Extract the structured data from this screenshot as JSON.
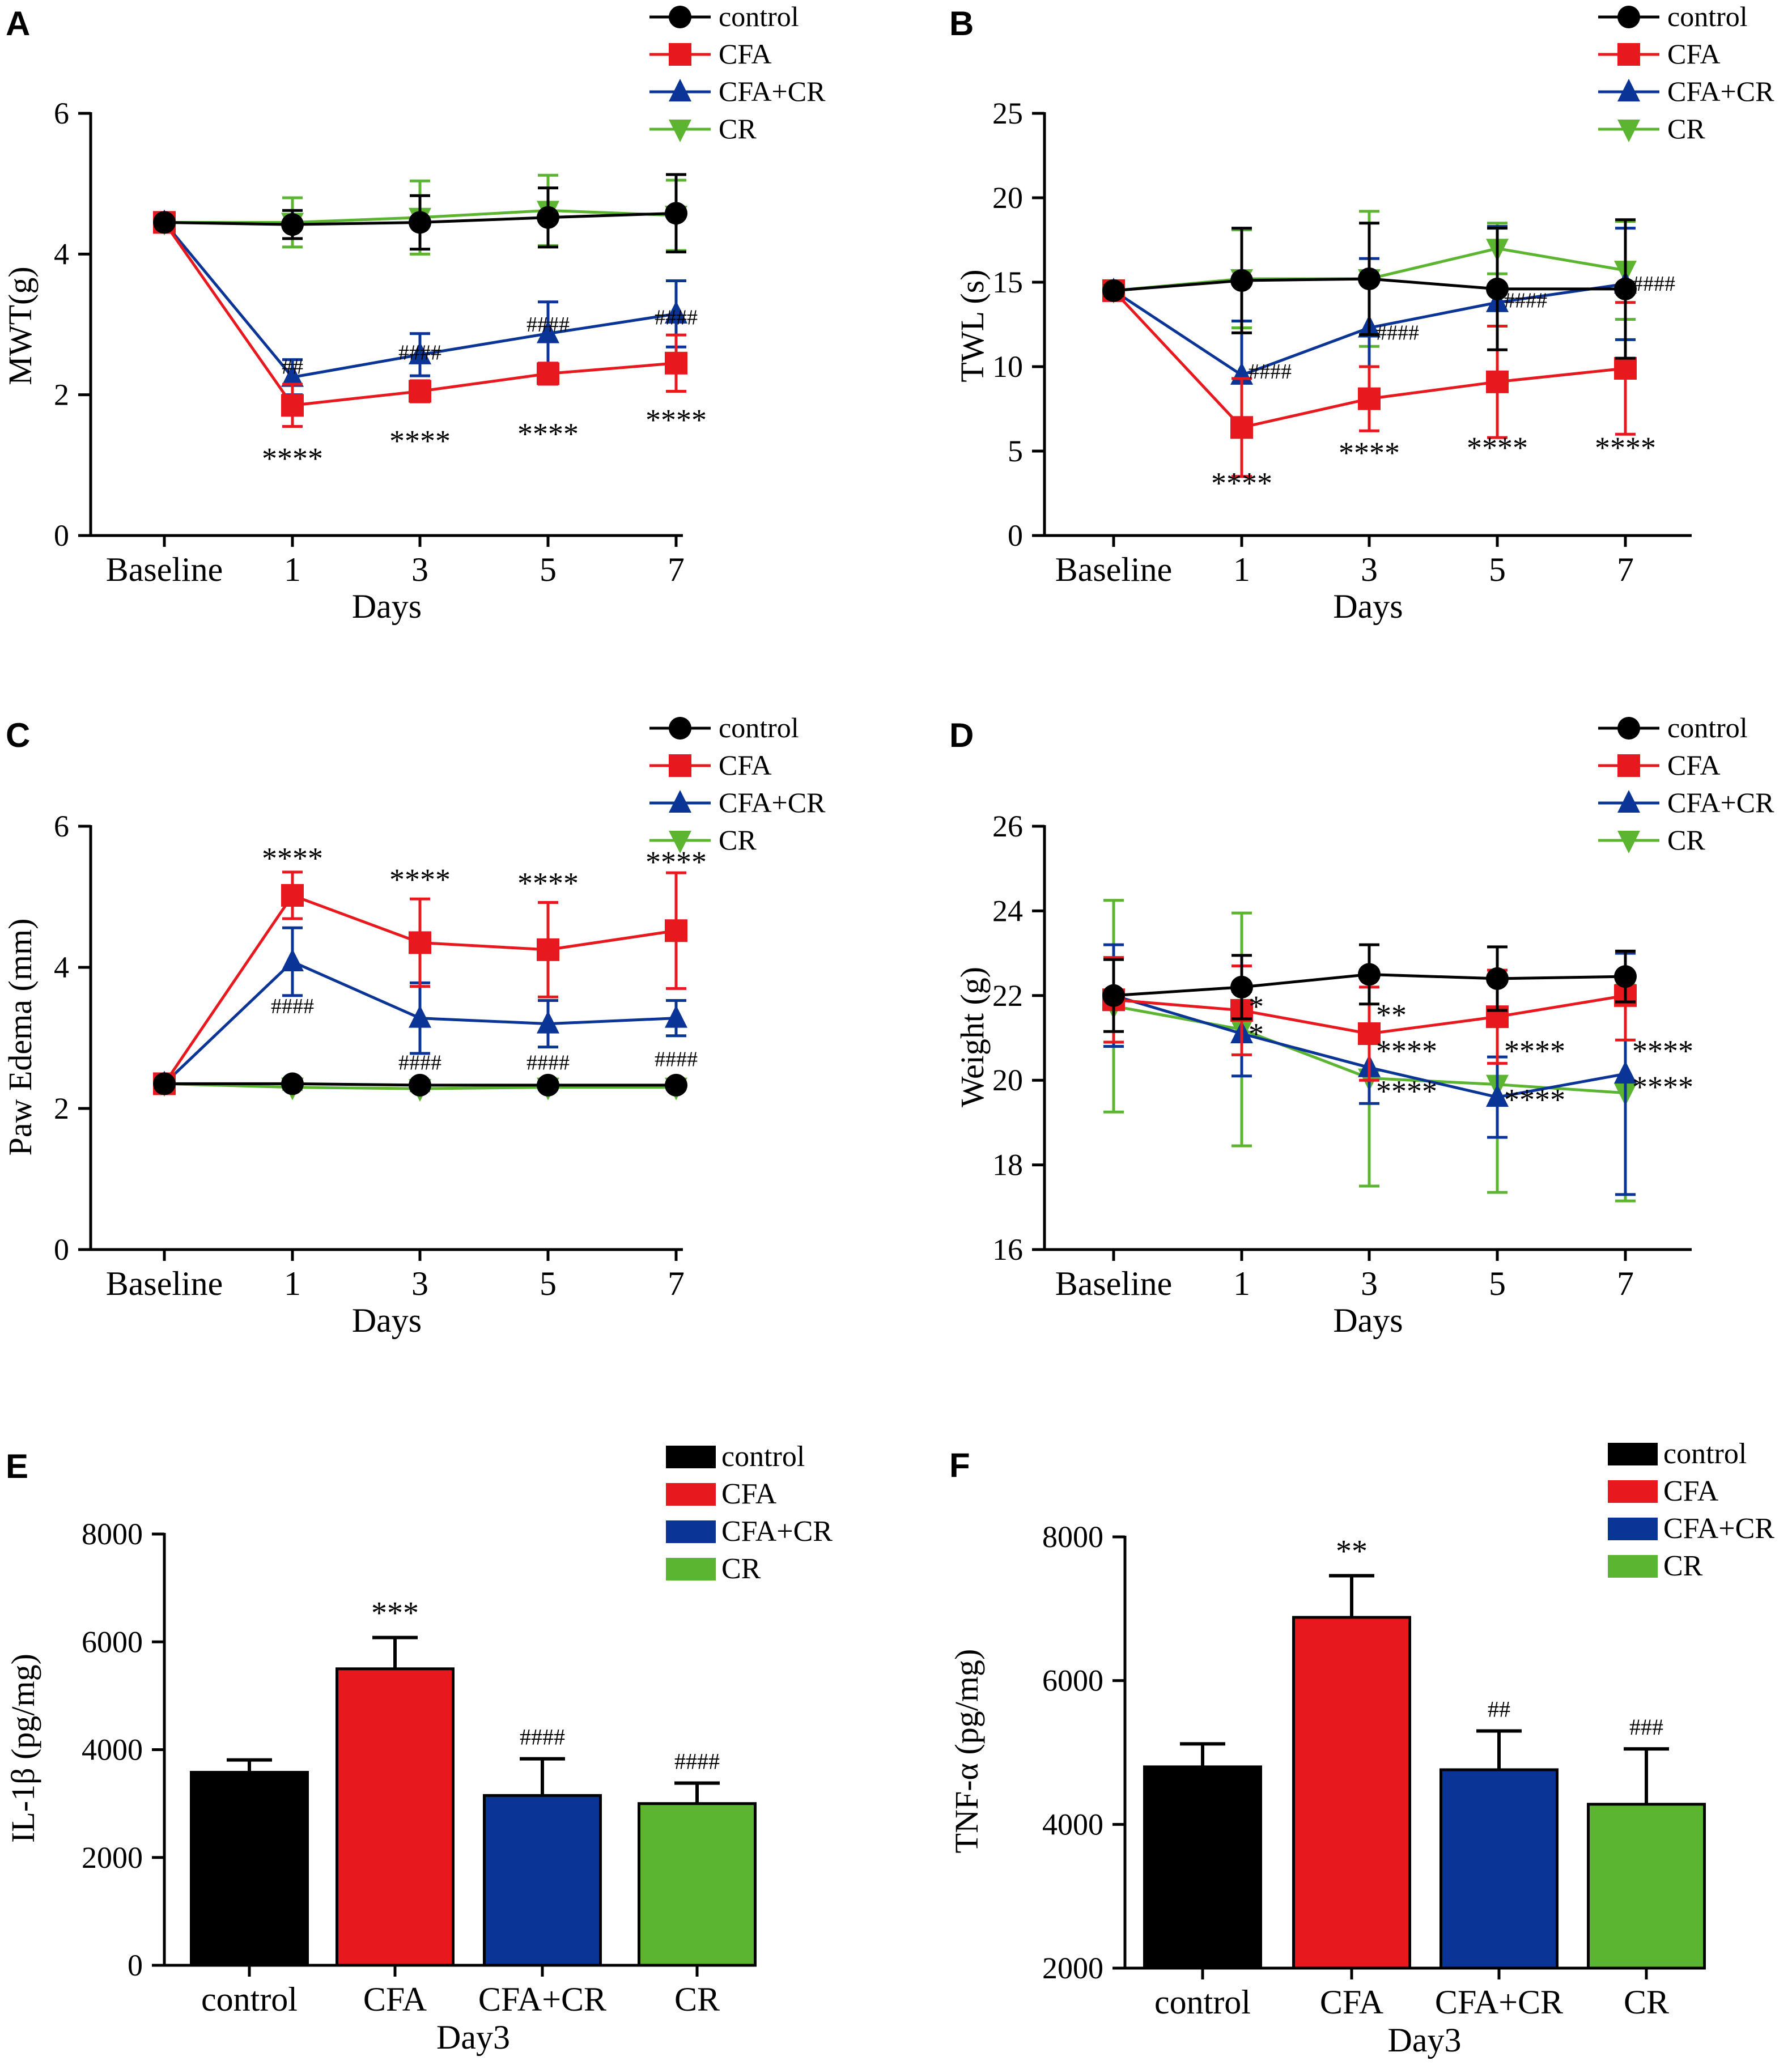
{
  "colors": {
    "control": "#000000",
    "CFA": "#e8191e",
    "CFA+CR": "#0a3596",
    "CR": "#5cb531"
  },
  "chart_data": [
    {
      "panel": "A",
      "type": "line",
      "ylabel": "MWT(g)",
      "xlabel": "Days",
      "categories": [
        "Baseline",
        "1",
        "3",
        "5",
        "7"
      ],
      "ylim": [
        0,
        6
      ],
      "yticks": [
        "0",
        "2",
        "4",
        "6"
      ],
      "legend": [
        "control",
        "CFA",
        "CFA+CR",
        "CR"
      ],
      "legend_position": "top-right",
      "series": [
        {
          "name": "control",
          "marker": "circle",
          "values": [
            4.45,
            4.42,
            4.45,
            4.52,
            4.58
          ],
          "errors": [
            0.05,
            0.2,
            0.38,
            0.42,
            0.55
          ]
        },
        {
          "name": "CFA",
          "marker": "square",
          "values": [
            4.45,
            1.85,
            2.05,
            2.3,
            2.45
          ],
          "errors": [
            0.05,
            0.3,
            0.15,
            0.15,
            0.4
          ]
        },
        {
          "name": "CFA+CR",
          "marker": "triangle-up",
          "values": [
            4.45,
            2.25,
            2.57,
            2.87,
            3.15
          ],
          "errors": [
            0.05,
            0.25,
            0.3,
            0.45,
            0.47
          ]
        },
        {
          "name": "CR",
          "marker": "triangle-down",
          "values": [
            4.45,
            4.45,
            4.52,
            4.62,
            4.55
          ],
          "errors": [
            0.05,
            0.35,
            0.52,
            0.5,
            0.5
          ]
        }
      ],
      "annotations": [
        {
          "text": "****",
          "category": "1",
          "y": 0.95
        },
        {
          "text": "****",
          "category": "3",
          "y": 1.2
        },
        {
          "text": "****",
          "category": "5",
          "y": 1.3
        },
        {
          "text": "****",
          "category": "7",
          "y": 1.5
        },
        {
          "text": "##",
          "category": "1",
          "y": 2.3
        },
        {
          "text": "####",
          "category": "3",
          "y": 2.5
        },
        {
          "text": "####",
          "category": "5",
          "y": 2.9
        },
        {
          "text": "####",
          "category": "7",
          "y": 3.0
        }
      ]
    },
    {
      "panel": "B",
      "type": "line",
      "ylabel": "TWL (s)",
      "xlabel": "Days",
      "categories": [
        "Baseline",
        "1",
        "3",
        "5",
        "7"
      ],
      "ylim": [
        0,
        25
      ],
      "yticks": [
        "0",
        "5",
        "10",
        "15",
        "20",
        "25"
      ],
      "legend": [
        "control",
        "CFA",
        "CFA+CR",
        "CR"
      ],
      "legend_position": "top-right",
      "series": [
        {
          "name": "control",
          "marker": "circle",
          "values": [
            14.5,
            15.1,
            15.2,
            14.6,
            14.6
          ],
          "errors": [
            0.3,
            3.1,
            3.3,
            3.6,
            4.1
          ]
        },
        {
          "name": "CFA",
          "marker": "square",
          "values": [
            14.5,
            6.4,
            8.1,
            9.1,
            9.9
          ],
          "errors": [
            0.3,
            2.9,
            1.9,
            3.3,
            3.9
          ]
        },
        {
          "name": "CFA+CR",
          "marker": "triangle-up",
          "values": [
            14.5,
            9.5,
            12.3,
            13.8,
            14.9
          ],
          "errors": [
            0.3,
            3.2,
            4.1,
            4.5,
            3.3
          ]
        },
        {
          "name": "CR",
          "marker": "triangle-down",
          "values": [
            14.5,
            15.2,
            15.2,
            17.0,
            15.7
          ],
          "errors": [
            0.3,
            2.9,
            4.0,
            1.5,
            2.9
          ]
        }
      ],
      "annotations": [
        {
          "text": "****",
          "category": "1",
          "y": 2.5
        },
        {
          "text": "****",
          "category": "3",
          "y": 4.3
        },
        {
          "text": "****",
          "category": "5",
          "y": 4.6
        },
        {
          "text": "****",
          "category": "7",
          "y": 4.6
        },
        {
          "text": "####",
          "category": "1",
          "y": 9.3
        },
        {
          "text": "####",
          "category": "3",
          "y": 11.6
        },
        {
          "text": "####",
          "category": "5",
          "y": 13.5
        },
        {
          "text": "####",
          "category": "7",
          "y": 14.5
        }
      ]
    },
    {
      "panel": "C",
      "type": "line",
      "ylabel": "Paw Edema (mm)",
      "xlabel": "Days",
      "categories": [
        "Baseline",
        "1",
        "3",
        "5",
        "7"
      ],
      "ylim": [
        0,
        6
      ],
      "yticks": [
        "0",
        "2",
        "4",
        "6"
      ],
      "legend": [
        "control",
        "CFA",
        "CFA+CR",
        "CR"
      ],
      "legend_position": "top-right",
      "series": [
        {
          "name": "control",
          "marker": "circle",
          "values": [
            2.35,
            2.35,
            2.33,
            2.33,
            2.33
          ],
          "errors": [
            0.05,
            0.03,
            0.03,
            0.03,
            0.03
          ]
        },
        {
          "name": "CFA",
          "marker": "square",
          "values": [
            2.35,
            5.02,
            4.35,
            4.25,
            4.52
          ],
          "errors": [
            0.05,
            0.33,
            0.62,
            0.67,
            0.82
          ]
        },
        {
          "name": "CFA+CR",
          "marker": "triangle-up",
          "values": [
            2.35,
            4.08,
            3.28,
            3.2,
            3.28
          ],
          "errors": [
            0.05,
            0.48,
            0.5,
            0.33,
            0.25
          ]
        },
        {
          "name": "CR",
          "marker": "triangle-down",
          "values": [
            2.35,
            2.3,
            2.28,
            2.3,
            2.3
          ],
          "errors": [
            0.05,
            0.03,
            0.03,
            0.03,
            0.03
          ]
        }
      ],
      "annotations": [
        {
          "text": "****",
          "category": "1",
          "y": 5.4
        },
        {
          "text": "****",
          "category": "3",
          "y": 5.1
        },
        {
          "text": "****",
          "category": "5",
          "y": 5.05
        },
        {
          "text": "****",
          "category": "7",
          "y": 5.35
        },
        {
          "text": "####",
          "category": "1",
          "y": 3.35
        },
        {
          "text": "####",
          "category": "3",
          "y": 2.55
        },
        {
          "text": "####",
          "category": "5",
          "y": 2.55
        },
        {
          "text": "####",
          "category": "7",
          "y": 2.6
        }
      ]
    },
    {
      "panel": "D",
      "type": "line",
      "ylabel": "Weight (g)",
      "xlabel": "Days",
      "categories": [
        "Baseline",
        "1",
        "3",
        "5",
        "7"
      ],
      "ylim": [
        16,
        26
      ],
      "yticks": [
        "16",
        "18",
        "20",
        "22",
        "24",
        "26"
      ],
      "legend": [
        "control",
        "CFA",
        "CFA+CR",
        "CR"
      ],
      "legend_position": "top-right",
      "series": [
        {
          "name": "control",
          "marker": "circle",
          "values": [
            22.0,
            22.2,
            22.5,
            22.4,
            22.45
          ],
          "errors": [
            0.85,
            0.75,
            0.7,
            0.75,
            0.6
          ]
        },
        {
          "name": "CFA",
          "marker": "square",
          "values": [
            21.9,
            21.65,
            21.1,
            21.5,
            22.0
          ],
          "errors": [
            1.0,
            1.05,
            1.1,
            1.1,
            1.05
          ]
        },
        {
          "name": "CFA+CR",
          "marker": "triangle-up",
          "values": [
            22.0,
            21.1,
            20.3,
            19.6,
            20.15
          ],
          "errors": [
            1.2,
            1.0,
            0.85,
            0.95,
            2.85
          ]
        },
        {
          "name": "CR",
          "marker": "triangle-down",
          "values": [
            21.75,
            21.2,
            20.05,
            19.9,
            19.7
          ],
          "errors": [
            2.5,
            2.75,
            2.55,
            2.55,
            2.55
          ]
        }
      ],
      "annotations": [
        {
          "text": "**",
          "category": "3",
          "y": 21.3
        },
        {
          "text": "****",
          "category": "3",
          "y": 20.45
        },
        {
          "text": "****",
          "category": "3",
          "y": 19.5
        },
        {
          "text": "****",
          "category": "5",
          "y": 20.45
        },
        {
          "text": "****",
          "category": "5",
          "y": 19.3
        },
        {
          "text": "****",
          "category": "7",
          "y": 20.45
        },
        {
          "text": "****",
          "category": "7",
          "y": 19.6
        },
        {
          "text": "*",
          "category": "1",
          "y": 21.5
        },
        {
          "text": "*",
          "category": "1",
          "y": 20.85
        }
      ]
    },
    {
      "panel": "E",
      "type": "bar",
      "ylabel": "IL-1β (pg/mg)",
      "xlabel": "Day3",
      "categories": [
        "control",
        "CFA",
        "CFA+CR",
        "CR"
      ],
      "ylim": [
        0,
        8000
      ],
      "yticks": [
        "0",
        "2000",
        "4000",
        "6000",
        "8000"
      ],
      "legend": [
        "control",
        "CFA",
        "CFA+CR",
        "CR"
      ],
      "legend_position": "top-right",
      "values": [
        3580,
        5500,
        3150,
        3000
      ],
      "errors": [
        230,
        580,
        680,
        380
      ],
      "annotations": [
        "",
        "***",
        "####",
        "####"
      ]
    },
    {
      "panel": "F",
      "type": "bar",
      "ylabel": "TNF-α (pg/mg)",
      "xlabel": "Day3",
      "categories": [
        "control",
        "CFA",
        "CFA+CR",
        "CR"
      ],
      "ylim": [
        2000,
        8000
      ],
      "yticks": [
        "2000",
        "4000",
        "6000",
        "8000"
      ],
      "legend": [
        "control",
        "CFA",
        "CFA+CR",
        "CR"
      ],
      "legend_position": "top-right",
      "values": [
        4800,
        6880,
        4760,
        4280
      ],
      "errors": [
        320,
        580,
        540,
        770
      ],
      "annotations": [
        "",
        "**",
        "##",
        "###"
      ]
    }
  ]
}
